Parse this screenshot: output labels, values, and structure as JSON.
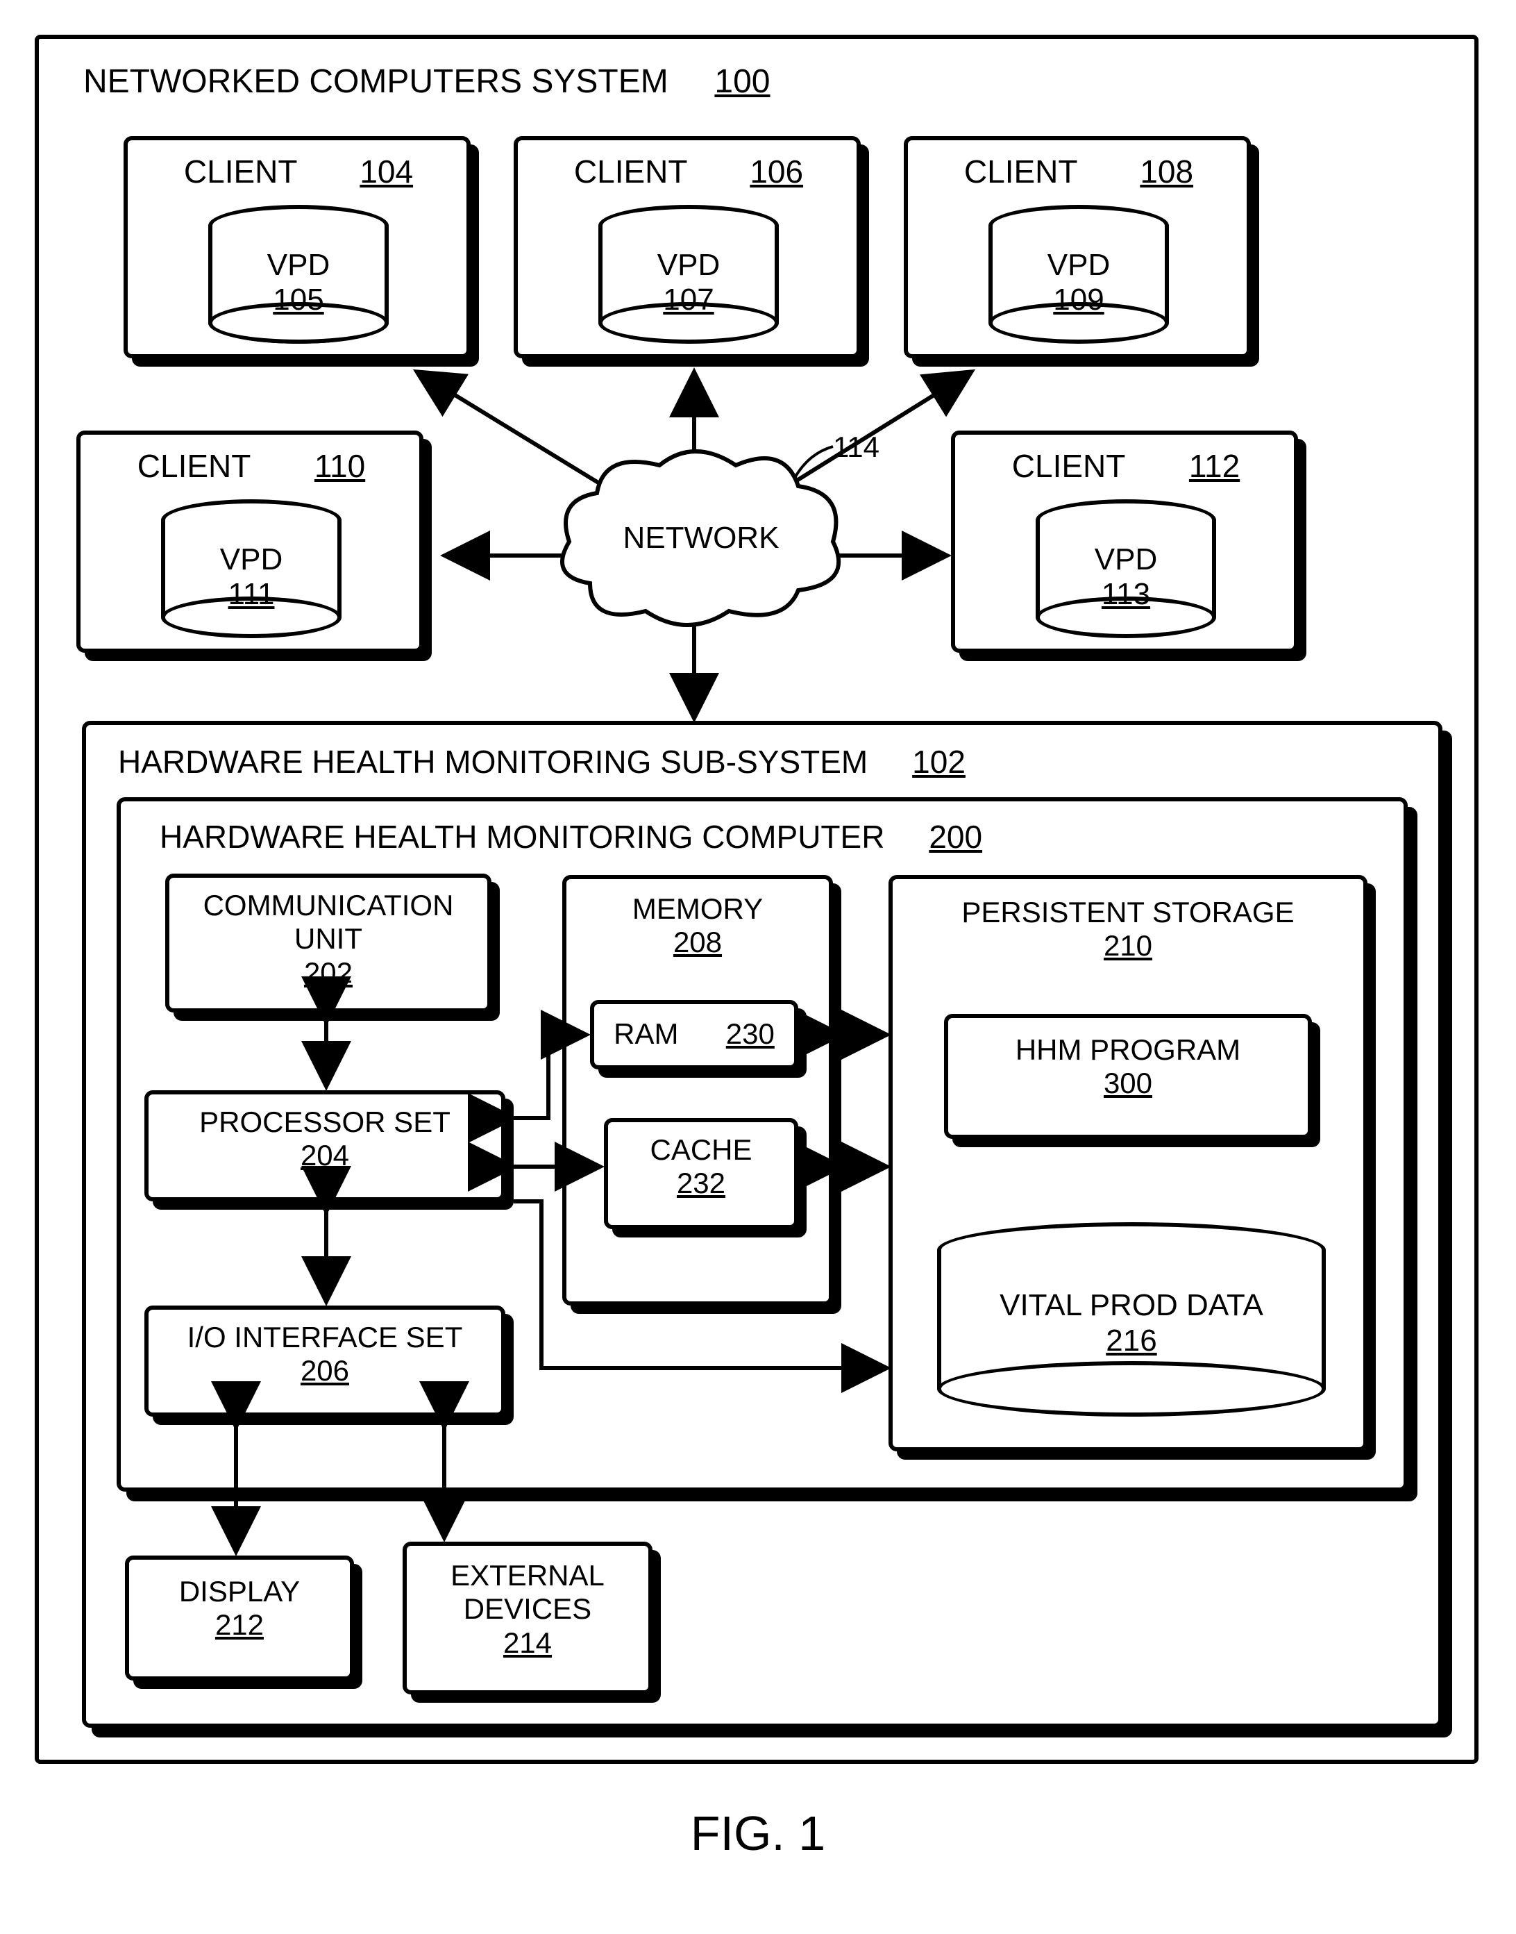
{
  "figure_caption": "FIG. 1",
  "system": {
    "title": "NETWORKED COMPUTERS SYSTEM",
    "id": "100"
  },
  "network": {
    "label": "NETWORK",
    "id": "114"
  },
  "clients": [
    {
      "title": "CLIENT",
      "id": "104",
      "vpd_label": "VPD",
      "vpd_id": "105"
    },
    {
      "title": "CLIENT",
      "id": "106",
      "vpd_label": "VPD",
      "vpd_id": "107"
    },
    {
      "title": "CLIENT",
      "id": "108",
      "vpd_label": "VPD",
      "vpd_id": "109"
    },
    {
      "title": "CLIENT",
      "id": "110",
      "vpd_label": "VPD",
      "vpd_id": "111"
    },
    {
      "title": "CLIENT",
      "id": "112",
      "vpd_label": "VPD",
      "vpd_id": "113"
    }
  ],
  "subsystem": {
    "title": "HARDWARE HEALTH MONITORING SUB-SYSTEM",
    "id": "102"
  },
  "computer": {
    "title": "HARDWARE HEALTH MONITORING COMPUTER",
    "id": "200"
  },
  "comm_unit": {
    "title": "COMMUNICATION UNIT",
    "id": "202"
  },
  "processor": {
    "title": "PROCESSOR SET",
    "id": "204"
  },
  "io_set": {
    "title": "I/O INTERFACE SET",
    "id": "206"
  },
  "memory": {
    "title": "MEMORY",
    "id": "208"
  },
  "ram": {
    "title": "RAM",
    "id": "230"
  },
  "cache": {
    "title": "CACHE",
    "id": "232"
  },
  "storage": {
    "title": "PERSISTENT STORAGE",
    "id": "210"
  },
  "program": {
    "title": "HHM PROGRAM",
    "id": "300"
  },
  "vpd_store": {
    "title": "VITAL PROD DATA",
    "id": "216"
  },
  "display": {
    "title": "DISPLAY",
    "id": "212"
  },
  "ext_dev": {
    "title": "EXTERNAL DEVICES",
    "id": "214"
  },
  "style": {
    "font_size_label": 44,
    "font_size_id": 44,
    "font_size_caption": 70,
    "stroke_width": 6,
    "arrow_size": 22,
    "colors": {
      "line": "#000000",
      "bg": "#ffffff"
    }
  }
}
